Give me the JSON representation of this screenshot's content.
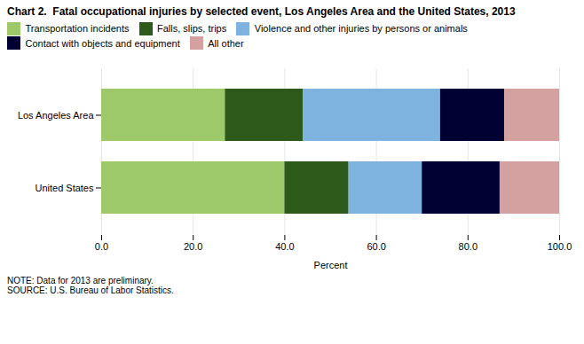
{
  "chart_data": {
    "type": "bar",
    "orientation": "horizontal",
    "stacked": true,
    "title": "Chart 2.  Fatal occupational injuries by selected event, Los Angeles Area and the United States, 2013",
    "categories": [
      "United States",
      "Los Angeles Area"
    ],
    "series": [
      {
        "name": "Transportation incidents",
        "color": "#9dc96a",
        "values": [
          40.0,
          27.0
        ]
      },
      {
        "name": "Falls, slips, trips",
        "color": "#2d5a1b",
        "values": [
          14.0,
          17.0
        ]
      },
      {
        "name": "Violence and other injuries by persons or animals",
        "color": "#7eb3e0",
        "values": [
          16.0,
          30.0
        ]
      },
      {
        "name": "Contact with objects and equipment",
        "color": "#000033",
        "values": [
          17.0,
          14.0
        ]
      },
      {
        "name": "All other",
        "color": "#d4a0a0",
        "values": [
          13.0,
          12.0
        ]
      }
    ],
    "xlabel": "Percent",
    "xlim": [
      0,
      100
    ],
    "xticks": [
      {
        "value": 0,
        "label": "0.0"
      },
      {
        "value": 20,
        "label": "20.0"
      },
      {
        "value": 40,
        "label": "40.0"
      },
      {
        "value": 60,
        "label": "60.0"
      },
      {
        "value": 80,
        "label": "80.0"
      },
      {
        "value": 100,
        "label": "100.0"
      }
    ],
    "grid": true,
    "legend": "top",
    "note": "NOTE: Data for 2013 are preliminary.\nSOURCE: U.S. Bureau of Labor Statistics."
  }
}
